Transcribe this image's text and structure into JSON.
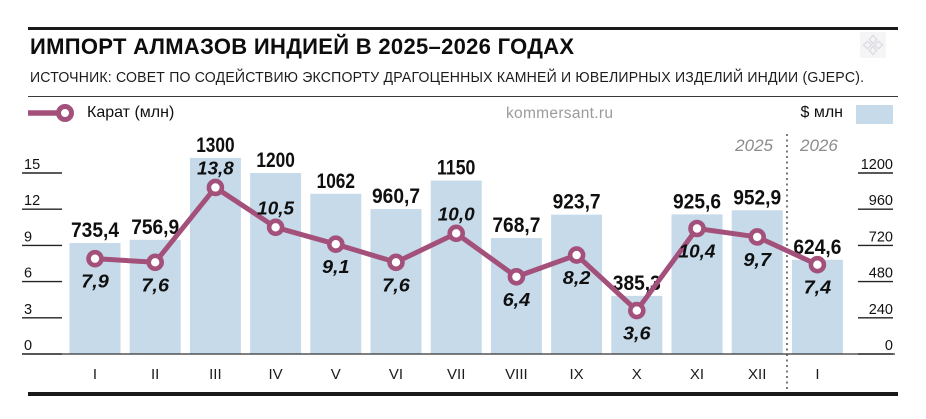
{
  "header": {
    "title": "ИМПОРТ АЛМАЗОВ ИНДИЕЙ В 2025–2026 ГОДАХ",
    "source": "ИСТОЧНИК: СОВЕТ ПО СОДЕЙСТВИЮ ЭКСПОРТУ ДРАГОЦЕННЫХ КАМНЕЙ И ЮВЕЛИРНЫХ ИЗДЕЛИЙ ИНДИИ (GJEPC)."
  },
  "legend": {
    "line_label": "Карат (млн)",
    "bar_label": "$ млн",
    "watermark": "kommersant.ru"
  },
  "colors": {
    "bar": "#c6daea",
    "line": "#a3517b",
    "marker_fill": "#ffffff",
    "text": "#111111",
    "year_label": "#8c8c8c",
    "watermark": "#9b9b9b",
    "rule": "#1a1a1a"
  },
  "chart_data": {
    "type": "bar+line",
    "categories": [
      "I",
      "II",
      "III",
      "IV",
      "V",
      "VI",
      "VII",
      "VIII",
      "IX",
      "X",
      "XI",
      "XII",
      "I"
    ],
    "series": [
      {
        "name": "$ млн",
        "type": "bar",
        "axis": "right",
        "values": [
          735.4,
          756.9,
          1300,
          1200,
          1062,
          960.7,
          1150,
          768.7,
          923.7,
          385.3,
          925.6,
          952.9,
          624.6
        ],
        "labels": [
          "735,4",
          "756,9",
          "1300",
          "1200",
          "1062",
          "960,7",
          "1150",
          "768,7",
          "923,7",
          "385,3",
          "925,6",
          "952,9",
          "624,6"
        ]
      },
      {
        "name": "Карат (млн)",
        "type": "line",
        "axis": "left",
        "values": [
          7.9,
          7.6,
          13.8,
          10.5,
          9.1,
          7.6,
          10.0,
          6.4,
          8.2,
          3.6,
          10.4,
          9.7,
          7.4
        ],
        "labels": [
          "7,9",
          "7,6",
          "13,8",
          "10,5",
          "9,1",
          "7,6",
          "10,0",
          "6,4",
          "8,2",
          "3,6",
          "10,4",
          "9,7",
          "7,4"
        ],
        "label_side": [
          "below",
          "below",
          "above",
          "above",
          "below",
          "below",
          "above",
          "below",
          "below",
          "below",
          "below",
          "below",
          "below"
        ]
      }
    ],
    "left_axis": {
      "ticks": [
        "0",
        "3",
        "6",
        "9",
        "12",
        "15"
      ],
      "tick_values": [
        0,
        3,
        6,
        9,
        12,
        15
      ],
      "max": 15
    },
    "right_axis": {
      "ticks": [
        "0",
        "240",
        "480",
        "720",
        "960",
        "1200"
      ],
      "tick_values": [
        0,
        240,
        480,
        720,
        960,
        1200
      ],
      "max": 1200
    },
    "year_markers": {
      "left": "2025",
      "right": "2026",
      "divider_after_index": 11
    },
    "grid": false,
    "legend_position": "top"
  }
}
